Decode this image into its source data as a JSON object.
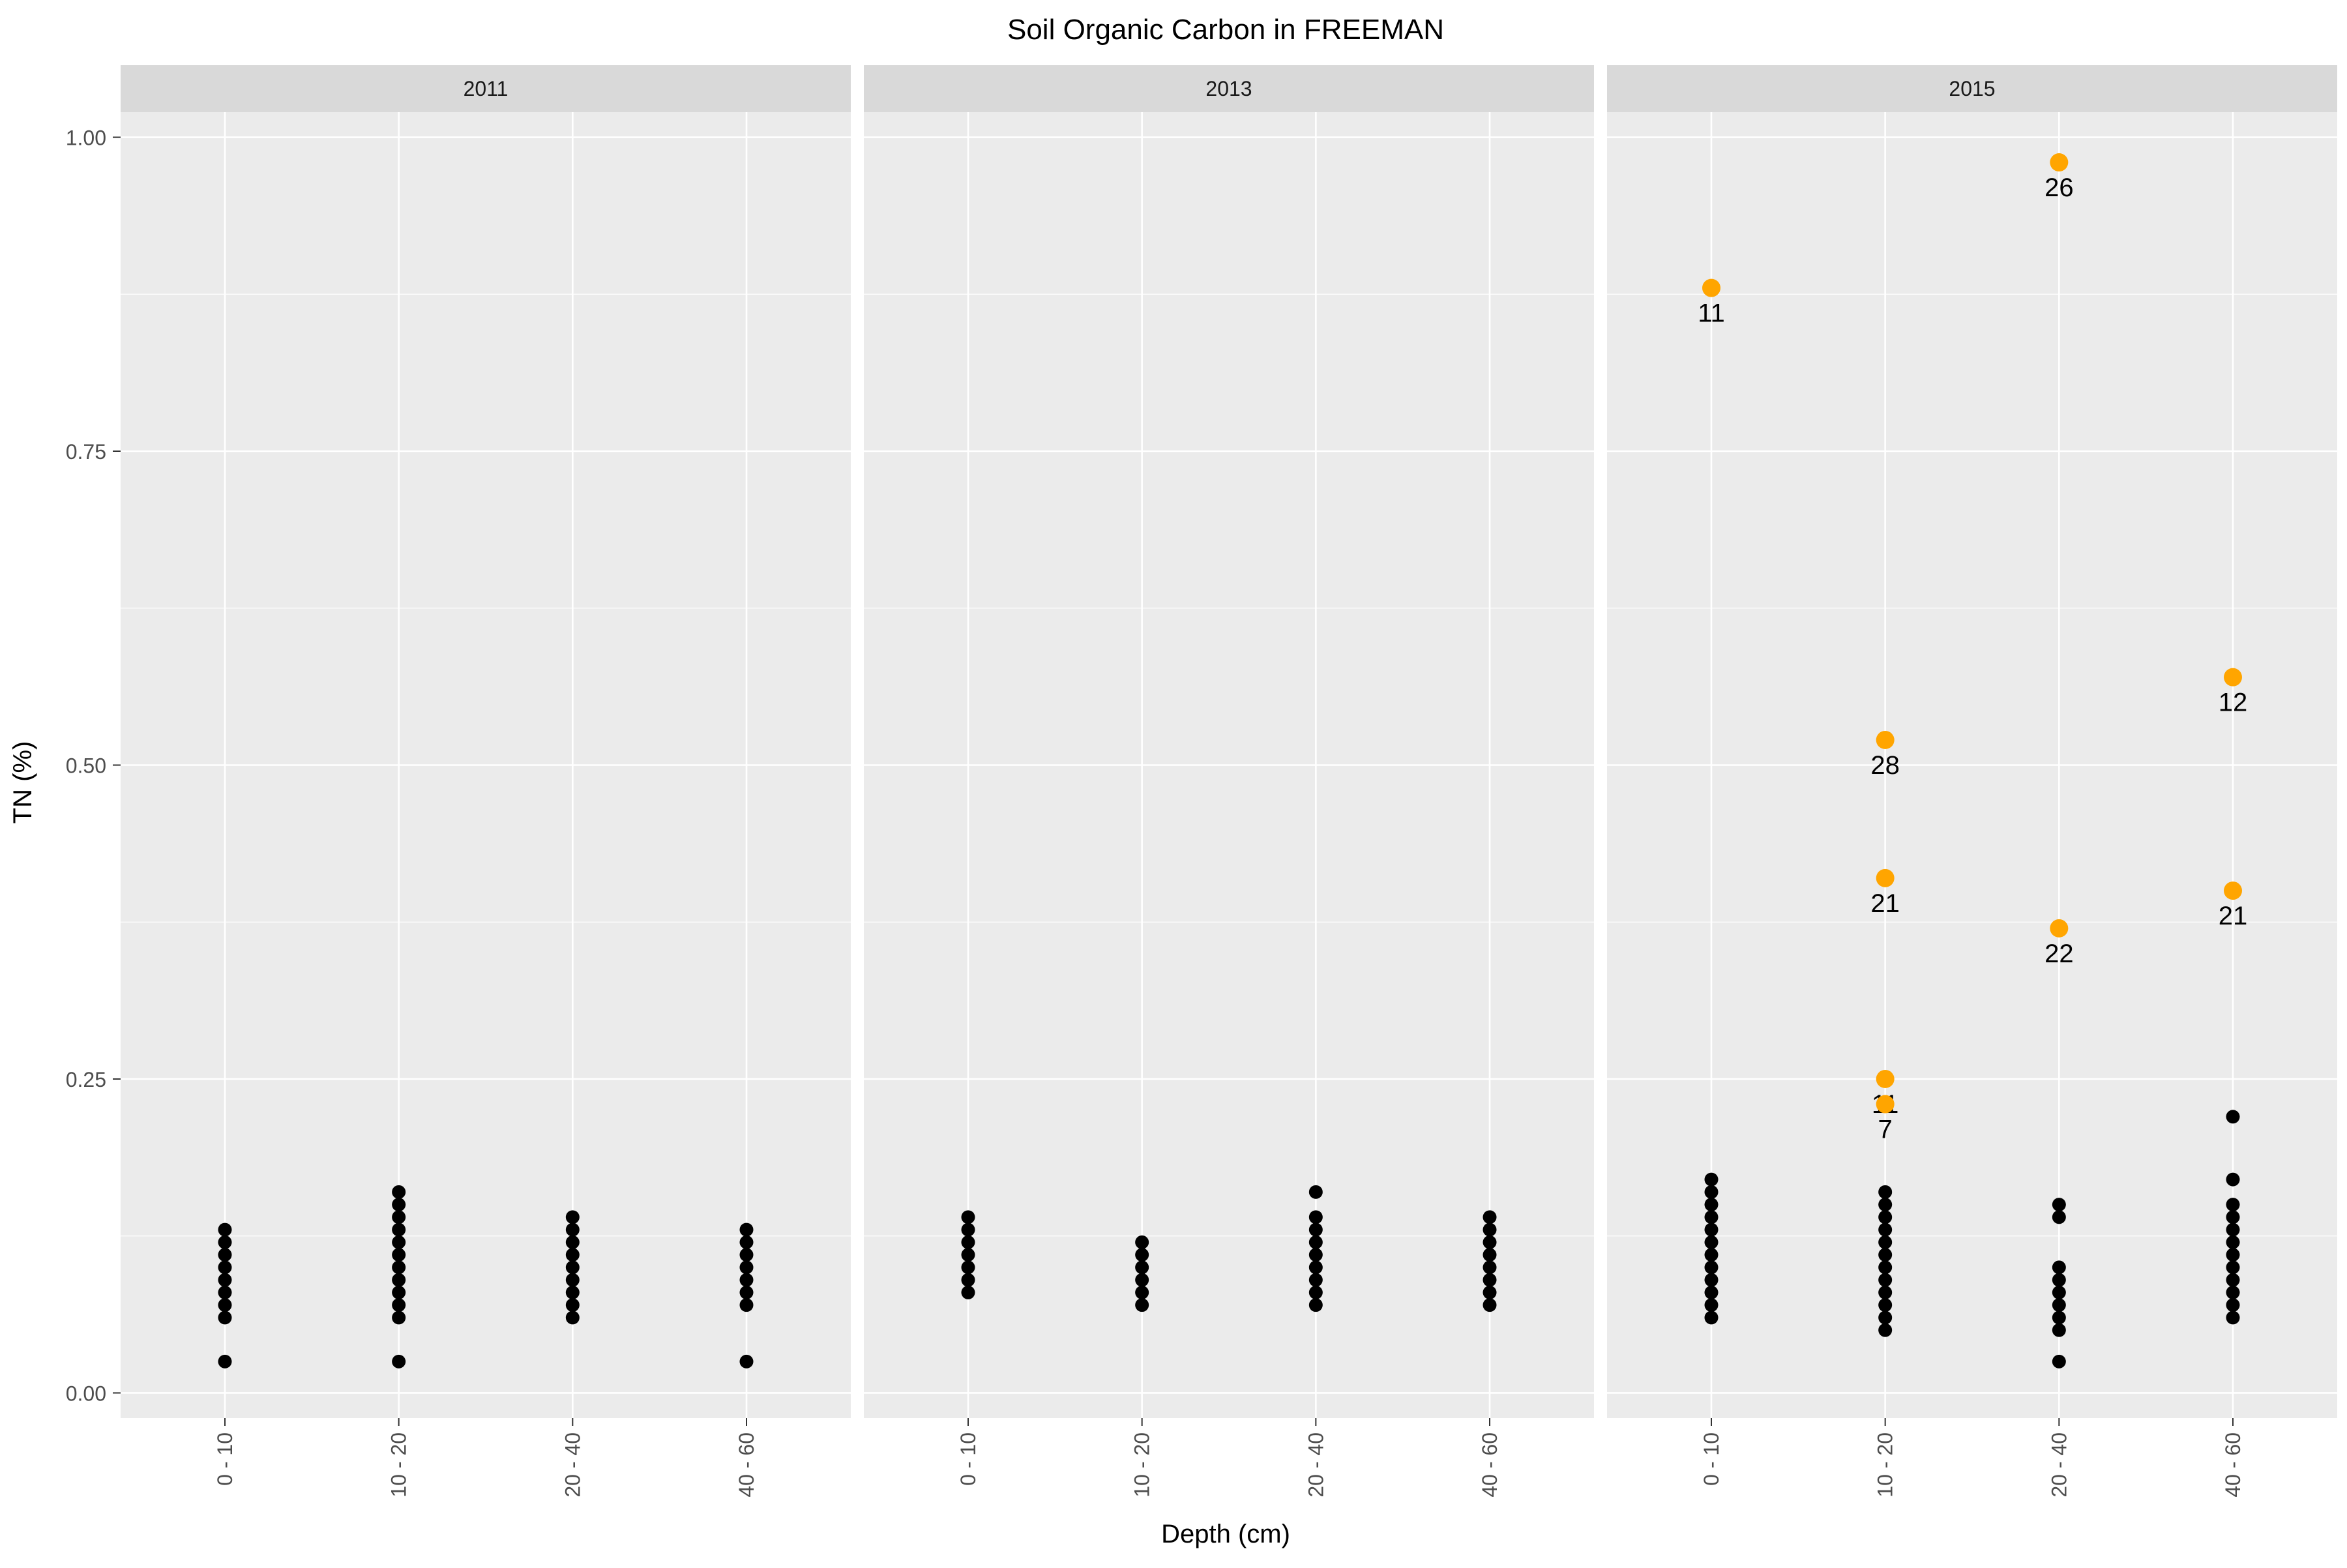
{
  "chart_data": {
    "type": "scatter",
    "title": "Soil Organic Carbon in FREEMAN",
    "xlabel": "Depth (cm)",
    "ylabel": "TN (%)",
    "facet_labels": [
      "2011",
      "2013",
      "2015"
    ],
    "categories": [
      "0 - 10",
      "10 - 20",
      "20 - 40",
      "40 - 60"
    ],
    "ylim": [
      -0.02,
      1.02
    ],
    "y_ticks": [
      0.0,
      0.25,
      0.5,
      0.75,
      1.0
    ],
    "y_tick_labels": [
      "0.00",
      "0.25",
      "0.50",
      "0.75",
      "1.00"
    ],
    "grid": true,
    "colors": {
      "panel_bg": "#ebebeb",
      "strip_bg": "#d9d9d9",
      "grid_major": "#ffffff",
      "normal_point": "#000000",
      "outlier_point": "#ffa500",
      "text": "#000000",
      "tick_text": "#4d4d4d"
    },
    "facets": [
      {
        "label": "2011",
        "normal": [
          {
            "category": "0 - 10",
            "values": [
              0.025,
              0.06,
              0.07,
              0.08,
              0.09,
              0.1,
              0.11,
              0.12,
              0.13
            ]
          },
          {
            "category": "10 - 20",
            "values": [
              0.025,
              0.06,
              0.07,
              0.08,
              0.09,
              0.1,
              0.11,
              0.12,
              0.13,
              0.14,
              0.15,
              0.16
            ]
          },
          {
            "category": "20 - 40",
            "values": [
              0.06,
              0.07,
              0.08,
              0.09,
              0.1,
              0.11,
              0.12,
              0.13,
              0.14
            ]
          },
          {
            "category": "40 - 60",
            "values": [
              0.025,
              0.07,
              0.08,
              0.09,
              0.1,
              0.11,
              0.12,
              0.13
            ]
          }
        ],
        "outliers": []
      },
      {
        "label": "2013",
        "normal": [
          {
            "category": "0 - 10",
            "values": [
              0.08,
              0.09,
              0.1,
              0.11,
              0.12,
              0.13,
              0.14
            ]
          },
          {
            "category": "10 - 20",
            "values": [
              0.07,
              0.08,
              0.09,
              0.1,
              0.11,
              0.12
            ]
          },
          {
            "category": "20 - 40",
            "values": [
              0.07,
              0.08,
              0.09,
              0.1,
              0.11,
              0.12,
              0.13,
              0.14,
              0.16
            ]
          },
          {
            "category": "40 - 60",
            "values": [
              0.07,
              0.08,
              0.09,
              0.1,
              0.11,
              0.12,
              0.13,
              0.14
            ]
          }
        ],
        "outliers": []
      },
      {
        "label": "2015",
        "normal": [
          {
            "category": "0 - 10",
            "values": [
              0.06,
              0.07,
              0.08,
              0.09,
              0.1,
              0.11,
              0.12,
              0.13,
              0.14,
              0.15,
              0.16,
              0.17
            ]
          },
          {
            "category": "10 - 20",
            "values": [
              0.05,
              0.06,
              0.07,
              0.08,
              0.09,
              0.1,
              0.11,
              0.12,
              0.13,
              0.14,
              0.15,
              0.16
            ]
          },
          {
            "category": "20 - 40",
            "values": [
              0.025,
              0.05,
              0.06,
              0.07,
              0.08,
              0.09,
              0.1,
              0.14,
              0.15
            ]
          },
          {
            "category": "40 - 60",
            "values": [
              0.06,
              0.07,
              0.08,
              0.09,
              0.1,
              0.11,
              0.12,
              0.13,
              0.14,
              0.15,
              0.17,
              0.22
            ]
          }
        ],
        "outliers": [
          {
            "category": "0 - 10",
            "value": 0.88,
            "label": "11"
          },
          {
            "category": "10 - 20",
            "value": 0.52,
            "label": "28"
          },
          {
            "category": "10 - 20",
            "value": 0.41,
            "label": "21"
          },
          {
            "category": "10 - 20",
            "value": 0.25,
            "label": "11"
          },
          {
            "category": "10 - 20",
            "value": 0.23,
            "label": "7"
          },
          {
            "category": "20 - 40",
            "value": 0.98,
            "label": "26"
          },
          {
            "category": "20 - 40",
            "value": 0.37,
            "label": "22"
          },
          {
            "category": "40 - 60",
            "value": 0.57,
            "label": "12"
          },
          {
            "category": "40 - 60",
            "value": 0.4,
            "label": "21"
          }
        ]
      }
    ]
  }
}
